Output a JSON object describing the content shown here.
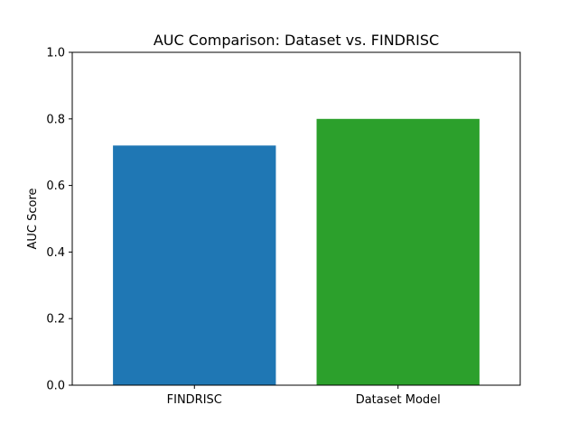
{
  "chart_data": {
    "type": "bar",
    "title": "AUC Comparison: Dataset vs. FINDRISC",
    "xlabel": "",
    "ylabel": "AUC Score",
    "categories": [
      "FINDRISC",
      "Dataset Model"
    ],
    "values": [
      0.72,
      0.8
    ],
    "colors": [
      "#1f77b4",
      "#2ca02c"
    ],
    "ylim": [
      0,
      1.0
    ],
    "yticks": [
      "0.0",
      "0.2",
      "0.4",
      "0.6",
      "0.8",
      "1.0"
    ],
    "grid": false,
    "legend": "none"
  }
}
